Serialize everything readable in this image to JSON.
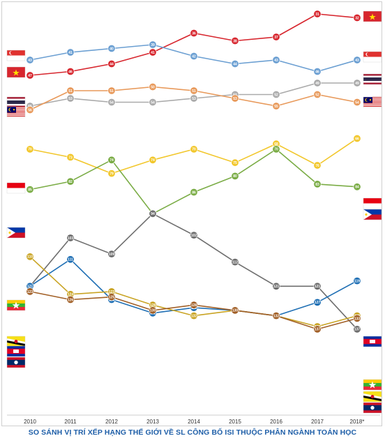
{
  "chart_data": {
    "type": "line",
    "title": "SO SÁNH VỊ TRÍ XẾP HẠNG THẾ GIỚI VỀ SL CÔNG BỐ ISI THUỘC PHÂN NGÀNH TOÁN HỌC",
    "xlabel": "",
    "ylabel": "",
    "categories": [
      "2010",
      "2011",
      "2012",
      "2013",
      "2014",
      "2015",
      "2016",
      "2017",
      "2018*"
    ],
    "y_axis": "rank, inverted (1 at top)",
    "grid": false,
    "legend": "flags at both ends of each line",
    "series": [
      {
        "color": "#d7262e",
        "start_flag": "vietnam-flag",
        "end_flag": "vietnam-flag",
        "values": [
          47,
          46,
          44,
          41,
          36,
          38,
          37,
          31,
          32
        ]
      },
      {
        "color": "#6b9fd2",
        "start_flag": "singapore-flag",
        "end_flag": "singapore-flag",
        "values": [
          43,
          41,
          40,
          39,
          42,
          44,
          43,
          46,
          43
        ]
      },
      {
        "color": "#aaaaaa",
        "start_flag": "thailand-flag",
        "end_flag": "thailand-flag",
        "values": [
          55,
          53,
          54,
          54,
          53,
          52,
          52,
          49,
          49
        ]
      },
      {
        "color": "#e8995a",
        "start_flag": "malaysia-flag",
        "end_flag": "malaysia-flag",
        "values": [
          56,
          51,
          51,
          50,
          51,
          53,
          55,
          52,
          54
        ]
      },
      {
        "color": "#f2c72c",
        "start_flag": "indonesia-flag",
        "end_flag": "indonesia-flag",
        "values": [
          70,
          73,
          79,
          74,
          70,
          75,
          68,
          76,
          66
        ]
      },
      {
        "color": "#7aac45",
        "start_flag": "philippines-flag",
        "end_flag": "philippines-flag",
        "values": [
          85,
          82,
          74,
          94,
          86,
          80,
          70,
          83,
          84
        ]
      },
      {
        "color": "#6e6e6e",
        "start_flag": "brunei-flag",
        "end_flag": "brunei-flag",
        "values": [
          121,
          103,
          109,
          94,
          102,
          112,
          121,
          121,
          137
        ]
      },
      {
        "color": "#1f6fb4",
        "start_flag": "cambodia-flag",
        "end_flag": "cambodia-flag",
        "values": [
          121,
          111,
          126,
          131,
          129,
          130,
          132,
          127,
          119
        ]
      },
      {
        "color": "#c9a424",
        "start_flag": "myanmar-flag",
        "end_flag": "myanmar-flag",
        "values": [
          110,
          124,
          123,
          128,
          132,
          130,
          132,
          136,
          132
        ]
      },
      {
        "color": "#a15f26",
        "start_flag": "laos-flag",
        "end_flag": "laos-flag",
        "values": [
          123,
          126,
          125,
          130,
          128,
          130,
          132,
          137,
          133
        ]
      }
    ]
  }
}
